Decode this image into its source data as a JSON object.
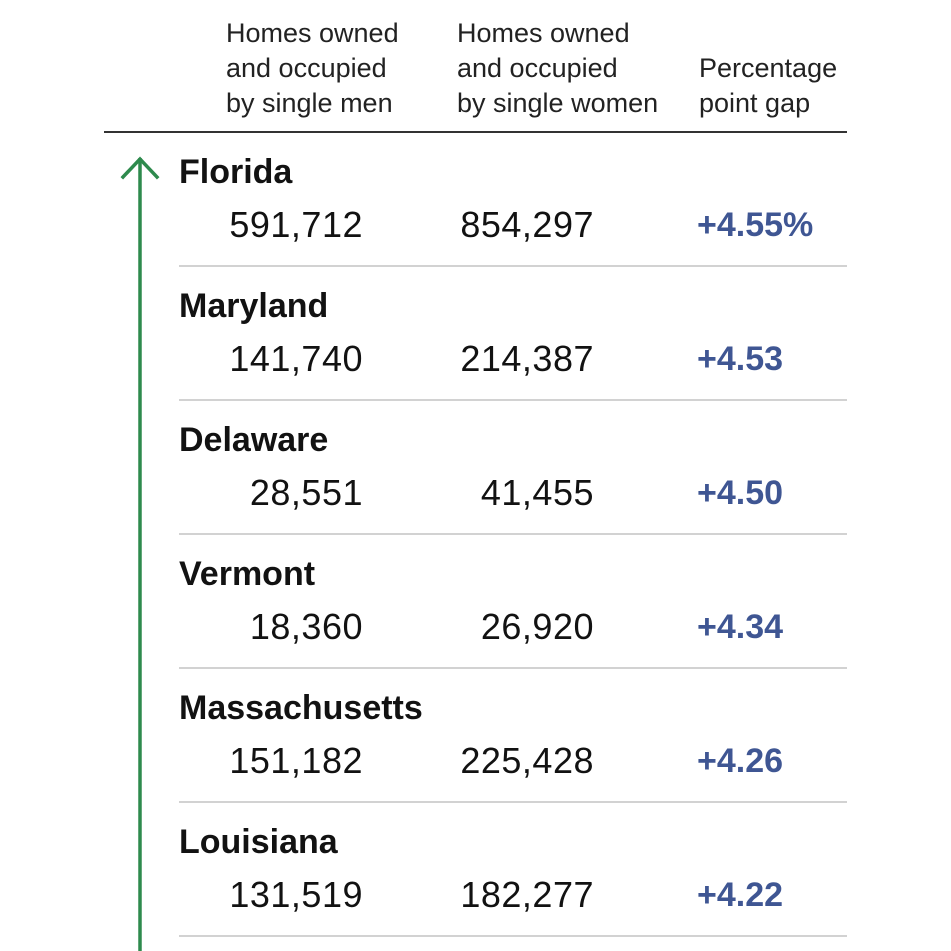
{
  "colors": {
    "gap_text": "#3f5693",
    "arrow": "#2e8a4d",
    "rule": "#333333",
    "row_rule": "#d2d2d2"
  },
  "headers": {
    "men": "Homes owned\nand occupied\nby single men",
    "women": "Homes owned\nand occupied\nby single women",
    "gap": "Percentage\npoint gap"
  },
  "chart_data": {
    "type": "table",
    "columns": [
      "Homes owned and occupied by single men",
      "Homes owned and occupied by single women",
      "Percentage point gap"
    ],
    "rows": [
      {
        "state": "Florida",
        "men": "591,712",
        "women": "854,297",
        "gap": "+4.55%"
      },
      {
        "state": "Maryland",
        "men": "141,740",
        "women": "214,387",
        "gap": "+4.53"
      },
      {
        "state": "Delaware",
        "men": "28,551",
        "women": "41,455",
        "gap": "+4.50"
      },
      {
        "state": "Vermont",
        "men": "18,360",
        "women": "26,920",
        "gap": "+4.34"
      },
      {
        "state": "Massachusetts",
        "men": "151,182",
        "women": "225,428",
        "gap": "+4.26"
      },
      {
        "state": "Louisiana",
        "men": "131,519",
        "women": "182,277",
        "gap": "+4.22"
      }
    ]
  }
}
